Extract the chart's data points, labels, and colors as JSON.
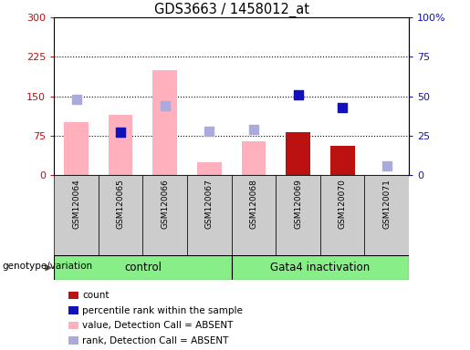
{
  "title": "GDS3663 / 1458012_at",
  "samples": [
    "GSM120064",
    "GSM120065",
    "GSM120066",
    "GSM120067",
    "GSM120068",
    "GSM120069",
    "GSM120070",
    "GSM120071"
  ],
  "control_label": "control",
  "gata4_label": "Gata4 inactivation",
  "genotype_label": "genotype/variation",
  "pink_bars": [
    100,
    115,
    200,
    25,
    65,
    0,
    0,
    0
  ],
  "red_bars": [
    0,
    0,
    0,
    0,
    0,
    82,
    55,
    0
  ],
  "blue_dots_pct": [
    null,
    27,
    null,
    null,
    null,
    51,
    43,
    null
  ],
  "lightblue_dots_pct": [
    48,
    27,
    44,
    28,
    29,
    null,
    null,
    6
  ],
  "ylim_left": [
    0,
    300
  ],
  "ylim_right": [
    0,
    100
  ],
  "yticks_left": [
    0,
    75,
    150,
    225,
    300
  ],
  "yticks_right": [
    0,
    25,
    50,
    75,
    100
  ],
  "ytick_labels_left": [
    "0",
    "75",
    "150",
    "225",
    "300"
  ],
  "ytick_labels_right": [
    "0",
    "25",
    "50",
    "75",
    "100%"
  ],
  "pink_color": "#FFB0BC",
  "red_color": "#BB1111",
  "blue_color": "#1111BB",
  "lightblue_color": "#AAAADD",
  "legend_items": [
    {
      "color": "#BB1111",
      "label": "count"
    },
    {
      "color": "#1111BB",
      "label": "percentile rank within the sample"
    },
    {
      "color": "#FFB0BC",
      "label": "value, Detection Call = ABSENT"
    },
    {
      "color": "#AAAADD",
      "label": "rank, Detection Call = ABSENT"
    }
  ],
  "bg_plot": "#FFFFFF",
  "bg_sample": "#CCCCCC",
  "bg_green": "#88EE88",
  "bar_width": 0.55,
  "dot_size": 45
}
